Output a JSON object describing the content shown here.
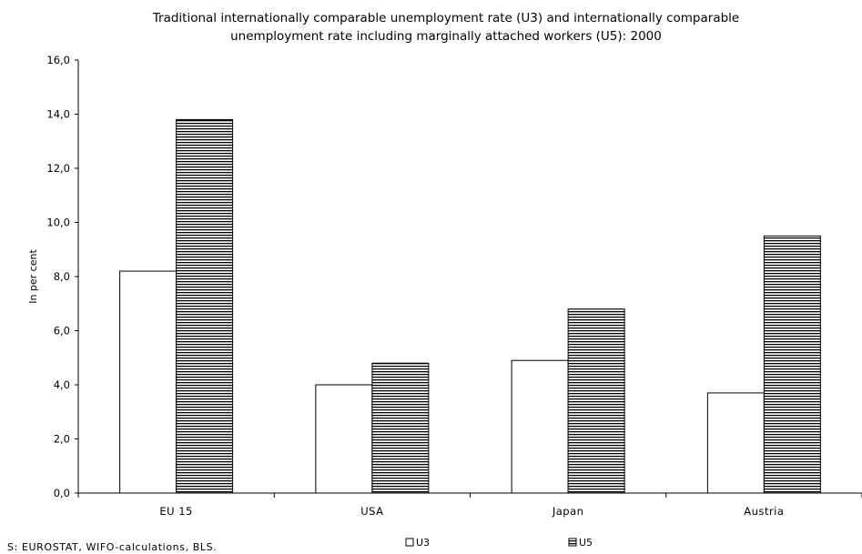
{
  "chart_data": {
    "type": "bar",
    "title_lines": [
      "Traditional internationally comparable unemployment rate  (U3) and internationally comparable",
      "unemployment rate including marginally attached workers (U5): 2000"
    ],
    "xlabel": "",
    "ylabel": "In per cent",
    "categories": [
      "EU 15",
      "USA",
      "Japan",
      "Austria"
    ],
    "series": [
      {
        "name": "U3",
        "values": [
          8.2,
          4.0,
          4.9,
          3.7
        ],
        "fill": "#ffffff",
        "pattern": "none"
      },
      {
        "name": "U5",
        "values": [
          13.8,
          4.8,
          6.8,
          9.5
        ],
        "fill": "#000000",
        "pattern": "horizontal-stripes"
      }
    ],
    "ylim": [
      0,
      16
    ],
    "yticks": [
      0,
      2,
      4,
      6,
      8,
      10,
      12,
      14,
      16
    ],
    "ytick_labels": [
      "0,0",
      "2,0",
      "4,0",
      "6,0",
      "8,0",
      "10,0",
      "12,0",
      "14,0",
      "16,0"
    ],
    "grid": false,
    "legend_position": "bottom"
  },
  "source_note": "S: EUROSTAT, WIFO-calculations, BLS."
}
